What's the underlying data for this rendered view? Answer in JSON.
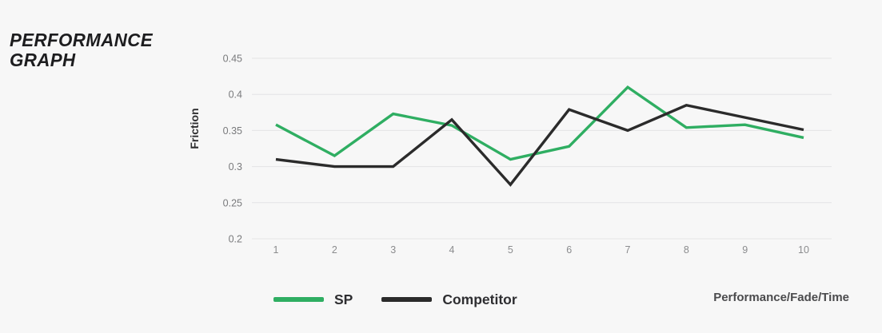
{
  "title": {
    "line1": "PERFORMANCE",
    "line2": "GRAPH"
  },
  "chart_data": {
    "type": "line",
    "x": [
      1,
      2,
      3,
      4,
      5,
      6,
      7,
      8,
      9,
      10
    ],
    "series": [
      {
        "name": "SP",
        "color": "#2fae62",
        "values": [
          0.358,
          0.315,
          0.373,
          0.357,
          0.31,
          0.328,
          0.41,
          0.354,
          0.358,
          0.34
        ]
      },
      {
        "name": "Competitor",
        "color": "#2b2b2b",
        "values": [
          0.31,
          0.3,
          0.3,
          0.365,
          0.275,
          0.379,
          0.35,
          0.385,
          0.368,
          0.351
        ]
      }
    ],
    "ylabel": "Friction",
    "xlabel_right": "Performance/Fade/Time",
    "yticks": [
      0.45,
      0.4,
      0.35,
      0.3,
      0.25,
      0.2
    ],
    "ylim": [
      0.2,
      0.45
    ],
    "grid": "horizontal-only",
    "legend_position": "bottom"
  },
  "colors": {
    "background": "#f7f7f7",
    "gridline": "#e4e4e5",
    "y_tick_text": "#797a7c",
    "x_tick_text": "#8b8c8e",
    "accent_green": "#2fae62",
    "line_black": "#2b2b2b"
  }
}
